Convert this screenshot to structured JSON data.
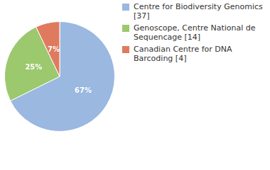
{
  "chart_data": {
    "type": "pie",
    "categories": [
      "Centre for Biodiversity Genomics [37]",
      "Genoscope, Centre National de Sequencage [14]",
      "Canadian Centre for DNA Barcoding [4]"
    ],
    "values": [
      67,
      25,
      7
    ],
    "value_labels": [
      "67%",
      "25%",
      "7%"
    ],
    "colors": [
      "#9ab8e0",
      "#9cc86e",
      "#e07a5f"
    ],
    "data_labels": true,
    "legend": "right"
  }
}
